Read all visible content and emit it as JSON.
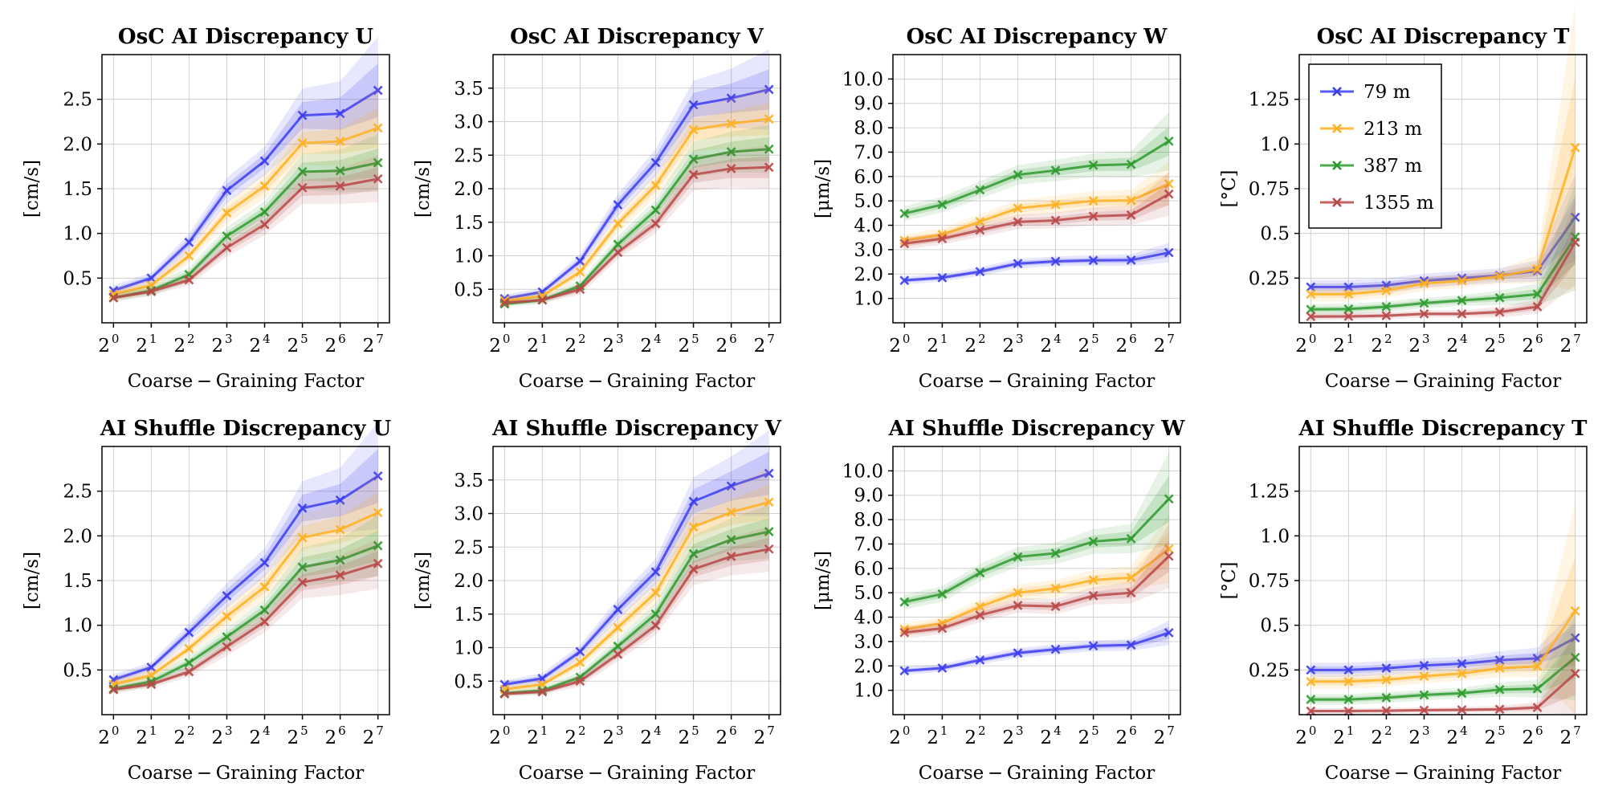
{
  "chart_data": [
    {
      "type": "line",
      "title": "OsC AI Discrepancy U",
      "xlabel": "Coarse − Graining Factor",
      "ylabel": "[cm/s]",
      "x_base": "2",
      "x_exponents": [
        "0",
        "1",
        "2",
        "3",
        "4",
        "5",
        "6",
        "7"
      ],
      "ylim": [
        0.0,
        3.0
      ],
      "yticks": [
        0.5,
        1.0,
        1.5,
        2.0,
        2.5
      ],
      "yticklabels": [
        "0.5",
        "1.0",
        "1.5",
        "2.0",
        "2.5"
      ],
      "series": [
        {
          "name": "79 m",
          "values": [
            0.36,
            0.5,
            0.9,
            1.48,
            1.81,
            2.32,
            2.34,
            2.6
          ],
          "spread": [
            0.03,
            0.03,
            0.05,
            0.07,
            0.08,
            0.15,
            0.18,
            0.3
          ]
        },
        {
          "name": "213 m",
          "values": [
            0.32,
            0.42,
            0.75,
            1.23,
            1.53,
            2.01,
            2.03,
            2.18
          ],
          "spread": [
            0.03,
            0.03,
            0.04,
            0.06,
            0.07,
            0.12,
            0.14,
            0.22
          ]
        },
        {
          "name": "387 m",
          "values": [
            0.28,
            0.36,
            0.54,
            0.97,
            1.24,
            1.69,
            1.7,
            1.79
          ],
          "spread": [
            0.02,
            0.03,
            0.04,
            0.05,
            0.06,
            0.1,
            0.12,
            0.16
          ]
        },
        {
          "name": "1355 m",
          "values": [
            0.28,
            0.35,
            0.48,
            0.84,
            1.1,
            1.51,
            1.53,
            1.61
          ],
          "spread": [
            0.02,
            0.02,
            0.03,
            0.05,
            0.06,
            0.09,
            0.1,
            0.13
          ]
        }
      ]
    },
    {
      "type": "line",
      "title": "OsC AI Discrepancy V",
      "xlabel": "Coarse − Graining Factor",
      "ylabel": "[cm/s]",
      "x_base": "2",
      "x_exponents": [
        "0",
        "1",
        "2",
        "3",
        "4",
        "5",
        "6",
        "7"
      ],
      "ylim": [
        0.0,
        4.0
      ],
      "yticks": [
        0.5,
        1.0,
        1.5,
        2.0,
        2.5,
        3.0,
        3.5
      ],
      "yticklabels": [
        "0.5",
        "1.0",
        "1.5",
        "2.0",
        "2.5",
        "3.0",
        "3.5"
      ],
      "series": [
        {
          "name": "79 m",
          "values": [
            0.36,
            0.46,
            0.92,
            1.76,
            2.39,
            3.25,
            3.35,
            3.48
          ],
          "spread": [
            0.03,
            0.03,
            0.05,
            0.08,
            0.1,
            0.18,
            0.22,
            0.3
          ]
        },
        {
          "name": "213 m",
          "values": [
            0.33,
            0.4,
            0.76,
            1.48,
            2.05,
            2.88,
            2.97,
            3.04
          ],
          "spread": [
            0.03,
            0.03,
            0.05,
            0.07,
            0.09,
            0.16,
            0.19,
            0.24
          ]
        },
        {
          "name": "387 m",
          "values": [
            0.28,
            0.34,
            0.55,
            1.17,
            1.68,
            2.44,
            2.55,
            2.59
          ],
          "spread": [
            0.02,
            0.03,
            0.04,
            0.06,
            0.08,
            0.13,
            0.15,
            0.18
          ]
        },
        {
          "name": "1355 m",
          "values": [
            0.3,
            0.34,
            0.5,
            1.05,
            1.48,
            2.21,
            2.3,
            2.32
          ],
          "spread": [
            0.02,
            0.02,
            0.04,
            0.05,
            0.07,
            0.12,
            0.14,
            0.16
          ]
        }
      ]
    },
    {
      "type": "line",
      "title": "OsC AI Discrepancy W",
      "xlabel": "Coarse − Graining Factor",
      "ylabel": "[μm/s]",
      "x_base": "2",
      "x_exponents": [
        "0",
        "1",
        "2",
        "3",
        "4",
        "5",
        "6",
        "7"
      ],
      "ylim": [
        0.0,
        11.0
      ],
      "yticks": [
        1,
        2,
        3,
        4,
        5,
        6,
        7,
        8,
        9,
        10
      ],
      "yticklabels": [
        "1.0",
        "2.0",
        "3.0",
        "4.0",
        "5.0",
        "6.0",
        "7.0",
        "8.0",
        "9.0",
        "10.0"
      ],
      "series": [
        {
          "name": "79 m",
          "values": [
            1.74,
            1.85,
            2.1,
            2.43,
            2.52,
            2.56,
            2.57,
            2.88
          ],
          "spread": [
            0.08,
            0.08,
            0.09,
            0.1,
            0.1,
            0.11,
            0.12,
            0.2
          ]
        },
        {
          "name": "213 m",
          "values": [
            3.38,
            3.62,
            4.15,
            4.7,
            4.85,
            5.0,
            5.02,
            5.7
          ],
          "spread": [
            0.12,
            0.13,
            0.15,
            0.17,
            0.18,
            0.2,
            0.22,
            0.45
          ]
        },
        {
          "name": "387 m",
          "values": [
            4.48,
            4.85,
            5.45,
            6.07,
            6.25,
            6.46,
            6.5,
            7.45
          ],
          "spread": [
            0.15,
            0.16,
            0.18,
            0.2,
            0.22,
            0.24,
            0.27,
            0.6
          ]
        },
        {
          "name": "1355 m",
          "values": [
            3.25,
            3.45,
            3.8,
            4.14,
            4.2,
            4.37,
            4.42,
            5.28
          ],
          "spread": [
            0.12,
            0.12,
            0.14,
            0.15,
            0.16,
            0.18,
            0.2,
            0.45
          ]
        }
      ]
    },
    {
      "type": "line",
      "title": "OsC AI Discrepancy T",
      "xlabel": "Coarse − Graining Factor",
      "ylabel": "[°C]",
      "x_base": "2",
      "x_exponents": [
        "0",
        "1",
        "2",
        "3",
        "4",
        "5",
        "6",
        "7"
      ],
      "ylim": [
        0.0,
        1.5
      ],
      "yticks": [
        0.25,
        0.5,
        0.75,
        1.0,
        1.25
      ],
      "yticklabels": [
        "0.25",
        "0.5",
        "0.75",
        "1.0",
        "1.25"
      ],
      "legend": {
        "entries": [
          "79 m",
          "213 m",
          "387 m",
          "1355 m"
        ],
        "location": "upper-left"
      },
      "series": [
        {
          "name": "79 m",
          "values": [
            0.2,
            0.2,
            0.21,
            0.235,
            0.25,
            0.265,
            0.29,
            0.59
          ],
          "spread": [
            0.02,
            0.02,
            0.02,
            0.02,
            0.02,
            0.02,
            0.03,
            0.12
          ]
        },
        {
          "name": "213 m",
          "values": [
            0.16,
            0.16,
            0.18,
            0.22,
            0.235,
            0.26,
            0.3,
            0.98
          ],
          "spread": [
            0.02,
            0.02,
            0.02,
            0.02,
            0.02,
            0.02,
            0.04,
            0.4
          ]
        },
        {
          "name": "387 m",
          "values": [
            0.075,
            0.077,
            0.09,
            0.11,
            0.125,
            0.14,
            0.16,
            0.48
          ],
          "spread": [
            0.015,
            0.015,
            0.015,
            0.015,
            0.015,
            0.02,
            0.03,
            0.15
          ]
        },
        {
          "name": "1355 m",
          "values": [
            0.035,
            0.036,
            0.04,
            0.05,
            0.05,
            0.06,
            0.09,
            0.45
          ],
          "spread": [
            0.01,
            0.01,
            0.01,
            0.01,
            0.01,
            0.015,
            0.02,
            0.12
          ]
        }
      ]
    },
    {
      "type": "line",
      "title": "AI Shuffle Discrepancy U",
      "xlabel": "Coarse − Graining Factor",
      "ylabel": "[cm/s]",
      "x_base": "2",
      "x_exponents": [
        "0",
        "1",
        "2",
        "3",
        "4",
        "5",
        "6",
        "7"
      ],
      "ylim": [
        0.0,
        3.0
      ],
      "yticks": [
        0.5,
        1.0,
        1.5,
        2.0,
        2.5
      ],
      "yticklabels": [
        "0.5",
        "1.0",
        "1.5",
        "2.0",
        "2.5"
      ],
      "series": [
        {
          "name": "79 m",
          "values": [
            0.39,
            0.53,
            0.92,
            1.33,
            1.7,
            2.31,
            2.4,
            2.67
          ],
          "spread": [
            0.03,
            0.03,
            0.05,
            0.07,
            0.08,
            0.15,
            0.18,
            0.3
          ]
        },
        {
          "name": "213 m",
          "values": [
            0.34,
            0.44,
            0.74,
            1.1,
            1.43,
            1.98,
            2.07,
            2.26
          ],
          "spread": [
            0.03,
            0.03,
            0.04,
            0.06,
            0.07,
            0.13,
            0.15,
            0.22
          ]
        },
        {
          "name": "387 m",
          "values": [
            0.29,
            0.37,
            0.58,
            0.87,
            1.17,
            1.65,
            1.73,
            1.89
          ],
          "spread": [
            0.02,
            0.03,
            0.04,
            0.05,
            0.06,
            0.11,
            0.12,
            0.17
          ]
        },
        {
          "name": "1355 m",
          "values": [
            0.28,
            0.34,
            0.48,
            0.76,
            1.04,
            1.48,
            1.56,
            1.69
          ],
          "spread": [
            0.02,
            0.02,
            0.03,
            0.05,
            0.06,
            0.09,
            0.11,
            0.14
          ]
        }
      ]
    },
    {
      "type": "line",
      "title": "AI Shuffle Discrepancy V",
      "xlabel": "Coarse − Graining Factor",
      "ylabel": "[cm/s]",
      "x_base": "2",
      "x_exponents": [
        "0",
        "1",
        "2",
        "3",
        "4",
        "5",
        "6",
        "7"
      ],
      "ylim": [
        0.0,
        4.0
      ],
      "yticks": [
        0.5,
        1.0,
        1.5,
        2.0,
        2.5,
        3.0,
        3.5
      ],
      "yticklabels": [
        "0.5",
        "1.0",
        "1.5",
        "2.0",
        "2.5",
        "3.0",
        "3.5"
      ],
      "series": [
        {
          "name": "79 m",
          "values": [
            0.45,
            0.54,
            0.94,
            1.57,
            2.13,
            3.18,
            3.41,
            3.6
          ],
          "spread": [
            0.03,
            0.04,
            0.05,
            0.08,
            0.1,
            0.18,
            0.22,
            0.32
          ]
        },
        {
          "name": "213 m",
          "values": [
            0.38,
            0.45,
            0.78,
            1.3,
            1.82,
            2.8,
            3.02,
            3.17
          ],
          "spread": [
            0.03,
            0.03,
            0.05,
            0.07,
            0.09,
            0.16,
            0.19,
            0.26
          ]
        },
        {
          "name": "387 m",
          "values": [
            0.32,
            0.36,
            0.56,
            1.02,
            1.5,
            2.4,
            2.61,
            2.73
          ],
          "spread": [
            0.02,
            0.03,
            0.04,
            0.06,
            0.08,
            0.14,
            0.16,
            0.2
          ]
        },
        {
          "name": "1355 m",
          "values": [
            0.31,
            0.34,
            0.5,
            0.9,
            1.33,
            2.17,
            2.36,
            2.47
          ],
          "spread": [
            0.02,
            0.02,
            0.04,
            0.05,
            0.07,
            0.12,
            0.14,
            0.17
          ]
        }
      ]
    },
    {
      "type": "line",
      "title": "AI Shuffle Discrepancy W",
      "xlabel": "Coarse − Graining Factor",
      "ylabel": "[μm/s]",
      "x_base": "2",
      "x_exponents": [
        "0",
        "1",
        "2",
        "3",
        "4",
        "5",
        "6",
        "7"
      ],
      "ylim": [
        0.0,
        11.0
      ],
      "yticks": [
        1,
        2,
        3,
        4,
        5,
        6,
        7,
        8,
        9,
        10
      ],
      "yticklabels": [
        "1.0",
        "2.0",
        "3.0",
        "4.0",
        "5.0",
        "6.0",
        "7.0",
        "8.0",
        "9.0",
        "10.0"
      ],
      "series": [
        {
          "name": "79 m",
          "values": [
            1.8,
            1.91,
            2.24,
            2.53,
            2.68,
            2.82,
            2.86,
            3.36
          ],
          "spread": [
            0.08,
            0.08,
            0.09,
            0.1,
            0.1,
            0.11,
            0.12,
            0.25
          ]
        },
        {
          "name": "213 m",
          "values": [
            3.5,
            3.75,
            4.43,
            5.0,
            5.18,
            5.52,
            5.62,
            6.8
          ],
          "spread": [
            0.12,
            0.13,
            0.15,
            0.17,
            0.18,
            0.2,
            0.24,
            0.7
          ]
        },
        {
          "name": "387 m",
          "values": [
            4.62,
            4.95,
            5.82,
            6.47,
            6.62,
            7.1,
            7.22,
            8.85
          ],
          "spread": [
            0.15,
            0.16,
            0.18,
            0.2,
            0.22,
            0.25,
            0.3,
            0.95
          ]
        },
        {
          "name": "1355 m",
          "values": [
            3.37,
            3.54,
            4.08,
            4.48,
            4.44,
            4.88,
            5.0,
            6.5
          ],
          "spread": [
            0.12,
            0.12,
            0.14,
            0.15,
            0.16,
            0.18,
            0.22,
            0.65
          ]
        }
      ]
    },
    {
      "type": "line",
      "title": "AI Shuffle Discrepancy T",
      "xlabel": "Coarse − Graining Factor",
      "ylabel": "[°C]",
      "x_base": "2",
      "x_exponents": [
        "0",
        "1",
        "2",
        "3",
        "4",
        "5",
        "6",
        "7"
      ],
      "ylim": [
        0.0,
        1.5
      ],
      "yticks": [
        0.25,
        0.5,
        0.75,
        1.0,
        1.25
      ],
      "yticklabels": [
        "0.25",
        "0.5",
        "0.75",
        "1.0",
        "1.25"
      ],
      "series": [
        {
          "name": "79 m",
          "values": [
            0.25,
            0.25,
            0.26,
            0.275,
            0.285,
            0.305,
            0.315,
            0.43
          ],
          "spread": [
            0.02,
            0.02,
            0.02,
            0.02,
            0.02,
            0.025,
            0.03,
            0.08
          ]
        },
        {
          "name": "213 m",
          "values": [
            0.185,
            0.185,
            0.195,
            0.215,
            0.23,
            0.26,
            0.27,
            0.58
          ],
          "spread": [
            0.02,
            0.02,
            0.02,
            0.02,
            0.02,
            0.025,
            0.03,
            0.3
          ]
        },
        {
          "name": "387 m",
          "values": [
            0.085,
            0.085,
            0.095,
            0.11,
            0.12,
            0.14,
            0.145,
            0.32
          ],
          "spread": [
            0.015,
            0.015,
            0.015,
            0.015,
            0.015,
            0.02,
            0.025,
            0.12
          ]
        },
        {
          "name": "1355 m",
          "values": [
            0.02,
            0.02,
            0.022,
            0.025,
            0.027,
            0.03,
            0.04,
            0.23
          ],
          "spread": [
            0.008,
            0.008,
            0.008,
            0.008,
            0.008,
            0.01,
            0.015,
            0.12
          ]
        }
      ]
    }
  ],
  "colors": {
    "79 m": "#3d3df0",
    "213 m": "#ffb020",
    "387 m": "#2e9a2e",
    "1355 m": "#b84848"
  }
}
